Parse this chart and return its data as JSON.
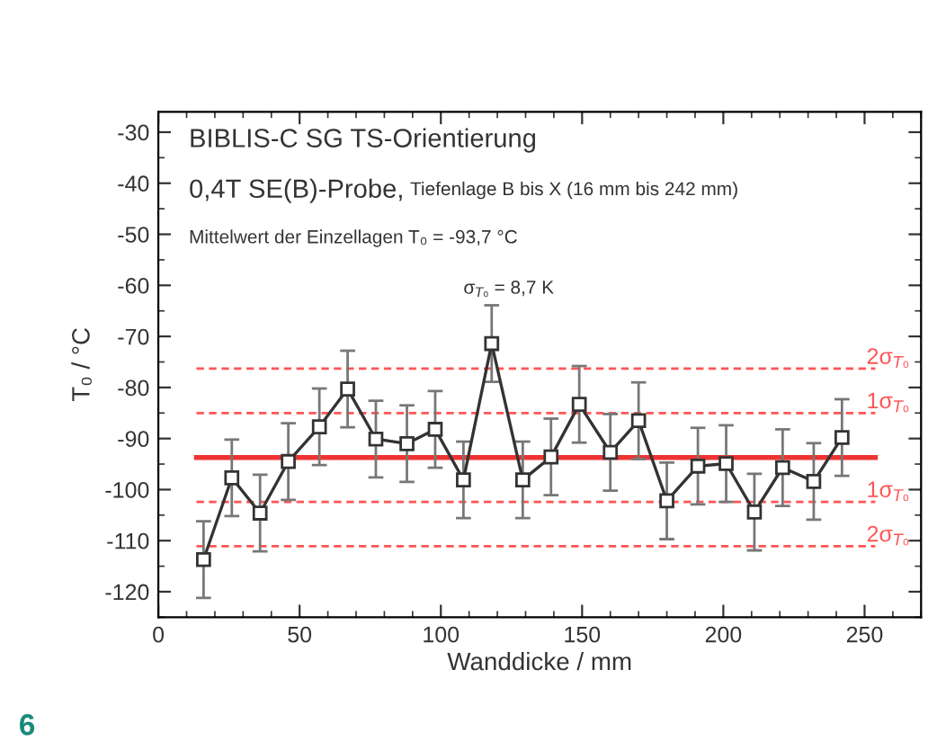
{
  "chart_data": {
    "type": "line",
    "xlabel": "Wanddicke / mm",
    "ylabel": "T₀ / °C",
    "annotations": [
      "BIBLIS-C SG TS-Orientierung",
      "0,4T SE(B)-Probe,",
      "Tiefenlage B bis X (16 mm bis 242 mm)",
      "Mittelwert der Einzellagen T₀ = -93,7 °C",
      "σ$_{T₀}$ = 8,7 K",
      "6"
    ],
    "series": [
      {
        "color": "#333333",
        "marker": "square",
        "line_style": "solid",
        "x": [
          16,
          26,
          36,
          46,
          57,
          67,
          77,
          88,
          98,
          108,
          118,
          129,
          139,
          149,
          160,
          170,
          180,
          191,
          201,
          211,
          221,
          232,
          242
        ],
        "values": [
          -113.7,
          -97.7,
          -104.6,
          -94.5,
          -87.7,
          -80.3,
          -90.1,
          -91,
          -88.2,
          -98.1,
          -71.4,
          -98.1,
          -93.6,
          -83.3,
          -92.7,
          -86.5,
          -102.2,
          -95.4,
          -94.9,
          -104.4,
          -95.7,
          -98.4,
          -89.8
        ],
        "errors": [
          7.5,
          7.5,
          7.5,
          7.5,
          7.5,
          7.5,
          7.5,
          7.5,
          7.5,
          7.5,
          7.5,
          7.5,
          7.5,
          7.5,
          7.5,
          7.5,
          7.5,
          7.5,
          7.5,
          7.5,
          7.5,
          7.5,
          7.5
        ]
      }
    ],
    "xlim": [
      0,
      270
    ],
    "xticks": [
      0,
      50,
      100,
      150,
      200,
      250
    ],
    "ylim": [
      -125,
      -26
    ],
    "yticks": [
      -30,
      -40,
      -50,
      -60,
      -70,
      -80,
      -90,
      -100,
      -110,
      -120
    ],
    "ref_lines": [
      {
        "axis": "y",
        "value": -93.7,
        "label": null,
        "color": "#ee3333",
        "line_style": "solid"
      },
      {
        "axis": "y",
        "value": -85,
        "label": "1σ$_{T₀}$",
        "color": "#ff5555",
        "line_style": "dashed"
      },
      {
        "axis": "y",
        "value": -102.4,
        "label": "1σ$_{T₀}$",
        "color": "#ff5555",
        "line_style": "dashed"
      },
      {
        "axis": "y",
        "value": -76.3,
        "label": "2σ$_{T₀}$",
        "color": "#ff5555",
        "line_style": "dashed"
      },
      {
        "axis": "y",
        "value": -111.1,
        "label": "2σ$_{T₀}$",
        "color": "#ff5555",
        "line_style": "dashed"
      }
    ],
    "grid": false,
    "legend": false
  }
}
